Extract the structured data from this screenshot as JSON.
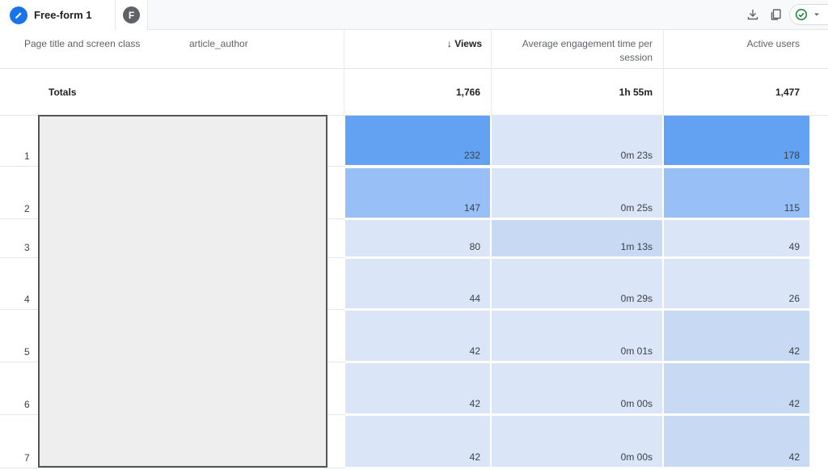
{
  "tabs": {
    "active_label": "Free-form 1",
    "second_avatar_letter": "F"
  },
  "toolbar": {
    "icons": [
      "download-icon",
      "copy-icon",
      "check-circle-icon",
      "chevron-down-icon"
    ]
  },
  "colors": {
    "accent": "#1a73e8",
    "heat_strong": "#63a1f3",
    "heat_medium": "#98c0f6",
    "heat_light": "#c8d9f4",
    "heat_faint": "#dae5f8",
    "check_green": "#188038"
  },
  "table": {
    "dimension_headers": [
      "Page title and screen class",
      "article_author"
    ],
    "metric_headers": {
      "views": "Views",
      "sort_arrow": "↓",
      "engagement": "Average engagement time per session",
      "active_users": "Active users"
    },
    "totals": {
      "label": "Totals",
      "views": "1,766",
      "engagement": "1h 55m",
      "active_users": "1,477"
    },
    "rows": [
      {
        "num": "1",
        "views": "232",
        "engagement": "0m 23s",
        "active_users": "178"
      },
      {
        "num": "2",
        "views": "147",
        "engagement": "0m 25s",
        "active_users": "115"
      },
      {
        "num": "3",
        "views": "80",
        "engagement": "1m 13s",
        "active_users": "49"
      },
      {
        "num": "4",
        "views": "44",
        "engagement": "0m 29s",
        "active_users": "26"
      },
      {
        "num": "5",
        "views": "42",
        "engagement": "0m 01s",
        "active_users": "42"
      },
      {
        "num": "6",
        "views": "42",
        "engagement": "0m 00s",
        "active_users": "42"
      },
      {
        "num": "7",
        "views": "42",
        "engagement": "0m 00s",
        "active_users": "42"
      }
    ]
  }
}
